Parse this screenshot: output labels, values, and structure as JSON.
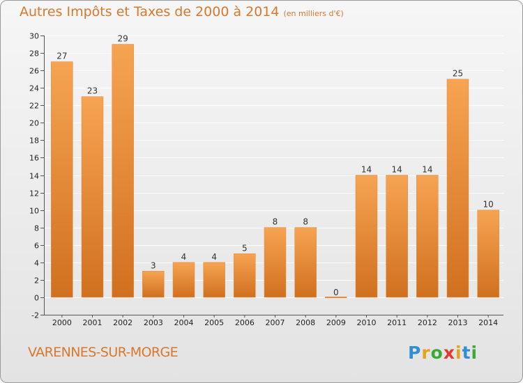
{
  "title": "Autres Impôts et Taxes de 2000 à 2014",
  "unit_label": "(en milliers d'€)",
  "town": "VARENNES-SUR-MORGE",
  "logo": {
    "letters": [
      "P",
      "r",
      "o",
      "x",
      "i",
      "t",
      "i"
    ],
    "colors": [
      "#2f8fd6",
      "#e8a21a",
      "#3aaa35",
      "#e2382e",
      "#e8a21a",
      "#2f8fd6",
      "#3aaa35"
    ]
  },
  "colors": {
    "bar": "#f0933d",
    "bar_dark": "#d06c1c",
    "title": "#d9782d"
  },
  "chart_data": {
    "type": "bar",
    "categories": [
      "2000",
      "2001",
      "2002",
      "2003",
      "2004",
      "2005",
      "2006",
      "2007",
      "2008",
      "2009",
      "2010",
      "2011",
      "2012",
      "2013",
      "2014"
    ],
    "values": [
      27,
      23,
      29,
      3,
      4,
      4,
      5,
      8,
      8,
      0,
      14,
      14,
      14,
      25,
      10
    ],
    "ylim": [
      -2,
      30
    ],
    "yticks": [
      -2,
      0,
      2,
      4,
      6,
      8,
      10,
      12,
      14,
      16,
      18,
      20,
      22,
      24,
      26,
      28,
      30
    ],
    "grid": true,
    "data_labels": true
  }
}
